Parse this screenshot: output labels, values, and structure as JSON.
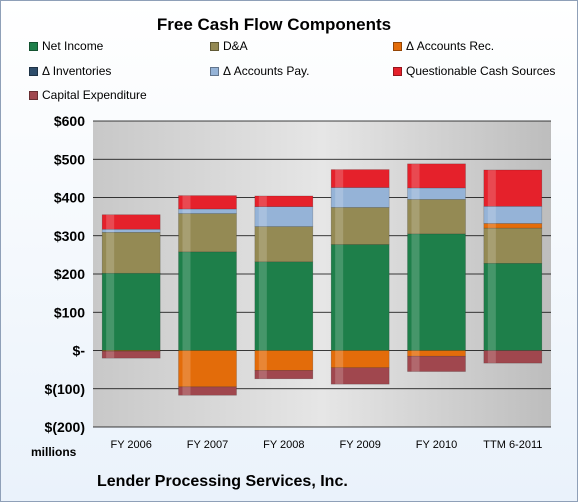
{
  "chart_data": {
    "type": "bar",
    "stacked": true,
    "title": "Free Cash Flow Components",
    "categories": [
      "FY 2006",
      "FY 2007",
      "FY 2008",
      "FY 2009",
      "FY 2010",
      "TTM 6-2011"
    ],
    "y_ticks": [
      "$600",
      "$500",
      "$400",
      "$300",
      "$200",
      "$100",
      "$-",
      "$(100)",
      "$(200)"
    ],
    "ylim": [
      -200,
      600
    ],
    "y_unit_label": "millions",
    "footer": "Lender Processing Services, Inc.",
    "grid": true,
    "legend_placement": "top",
    "series": [
      {
        "name": "Net Income",
        "color": "#1e7f4a",
        "values": [
          202,
          258,
          232,
          277,
          305,
          228
        ]
      },
      {
        "name": "D&A",
        "color": "#948a54",
        "values": [
          107,
          100,
          92,
          97,
          90,
          92
        ]
      },
      {
        "name": "Δ Accounts Rec.",
        "color": "#e36c0a",
        "values": [
          -2,
          -95,
          -52,
          -45,
          -15,
          12
        ]
      },
      {
        "name": "Δ Inventories",
        "color": "#2e4d6b",
        "values": [
          0,
          0,
          0,
          0,
          0,
          0
        ]
      },
      {
        "name": "Δ Accounts Pay.",
        "color": "#95b3d7",
        "values": [
          8,
          12,
          52,
          52,
          30,
          45
        ]
      },
      {
        "name": "Questionable Cash Sources",
        "color": "#e5212b",
        "values": [
          38,
          35,
          28,
          47,
          63,
          95
        ]
      },
      {
        "name": "Capital Expenditure",
        "color": "#a0474e",
        "values": [
          -18,
          -22,
          -22,
          -43,
          -40,
          -33
        ]
      }
    ]
  }
}
